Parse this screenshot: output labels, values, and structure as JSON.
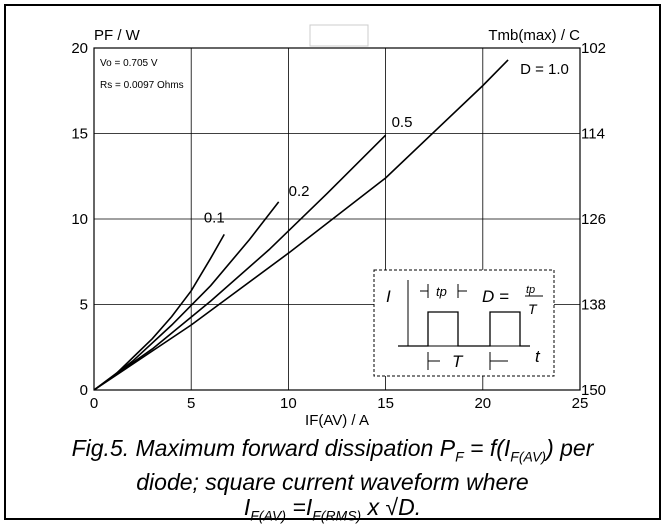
{
  "chart_data": {
    "type": "line",
    "title": "",
    "ylabel_left": "PF / W",
    "ylabel_right": "Tmb(max) / C",
    "xlabel": "IF(AV) / A",
    "xlim": [
      0,
      25
    ],
    "ylim": [
      0,
      20
    ],
    "x_ticks": [
      "0",
      "5",
      "10",
      "15",
      "20",
      "25"
    ],
    "y_ticks": [
      "0",
      "5",
      "10",
      "15",
      "20"
    ],
    "y2_ticks": [
      "150",
      "138",
      "126",
      "114",
      "102"
    ],
    "grid": true,
    "params": [
      "Vo = 0.705 V",
      "Rs = 0.0097 Ohms"
    ],
    "series": [
      {
        "name": "0.1",
        "x": [
          0,
          1,
          2,
          3,
          4,
          5,
          6,
          6.7
        ],
        "y": [
          0,
          0.8,
          1.9,
          3.0,
          4.3,
          5.8,
          7.7,
          9.1
        ]
      },
      {
        "name": "0.2",
        "x": [
          0,
          2,
          4,
          6,
          8,
          9.5
        ],
        "y": [
          0,
          1.7,
          3.8,
          6.1,
          8.8,
          11.0
        ]
      },
      {
        "name": "0.5",
        "x": [
          0,
          3,
          6,
          9,
          12,
          15
        ],
        "y": [
          0,
          2.4,
          5.2,
          8.2,
          11.5,
          14.9
        ]
      },
      {
        "name": "D = 1.0",
        "x": [
          0,
          5,
          10,
          15,
          20,
          21.3
        ],
        "y": [
          0,
          3.8,
          8.0,
          12.4,
          17.8,
          19.3
        ]
      }
    ],
    "inset": {
      "axis_y": "I",
      "axis_x": "t",
      "pulse_label": "tp",
      "period_label": "T",
      "formula_left": "D =",
      "formula_num": "tp",
      "formula_den": "T"
    }
  },
  "caption": {
    "line1": "Fig.5.  Maximum forward dissipation P",
    "line1_sub": "F",
    "line1_mid": " = f(I",
    "line1_sub2": "F(AV)",
    "line1_end": ") per",
    "line2": "diode; square current waveform where",
    "line3_a": "I",
    "line3_sub_a": "F(AV)",
    "line3_b": " =I",
    "line3_sub_b": "F(RMS)",
    "line3_c": " x √D."
  }
}
